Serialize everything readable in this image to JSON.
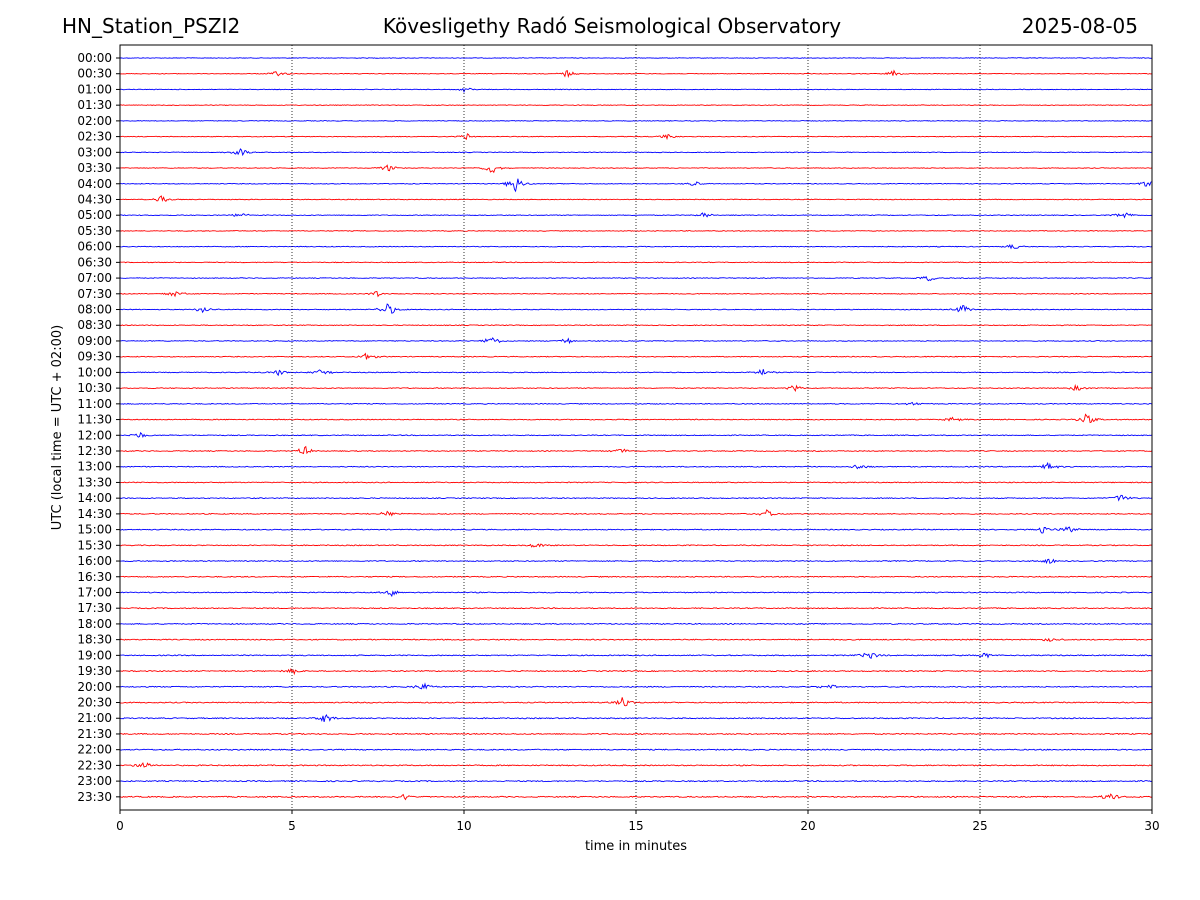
{
  "header": {
    "station": "HN_Station_PSZI2",
    "observatory": "Kövesligethy Radó Seismological Observatory",
    "date": "2025-08-05"
  },
  "chart_data": {
    "type": "line",
    "title": "Kövesligethy Radó Seismological Observatory",
    "xlabel": "time in minutes",
    "ylabel": "UTC (local time = UTC + 02:00)",
    "xlim": [
      0,
      30
    ],
    "xticks": [
      0,
      5,
      10,
      15,
      20,
      25,
      30
    ],
    "grid_x": true,
    "rows": [
      "00:00",
      "00:30",
      "01:00",
      "01:30",
      "02:00",
      "02:30",
      "03:00",
      "03:30",
      "04:00",
      "04:30",
      "05:00",
      "05:30",
      "06:00",
      "06:30",
      "07:00",
      "07:30",
      "08:00",
      "08:30",
      "09:00",
      "09:30",
      "10:00",
      "10:30",
      "11:00",
      "11:30",
      "12:00",
      "12:30",
      "13:00",
      "13:30",
      "14:00",
      "14:30",
      "15:00",
      "15:30",
      "16:00",
      "16:30",
      "17:00",
      "17:30",
      "18:00",
      "18:30",
      "19:00",
      "19:30",
      "20:00",
      "20:30",
      "21:00",
      "21:30",
      "22:00",
      "22:30",
      "23:00",
      "23:30"
    ],
    "colors": [
      "#0000ff",
      "#ff0000"
    ],
    "events": [
      {
        "row": "00:30",
        "t": 4.6,
        "amp": 0.35
      },
      {
        "row": "00:30",
        "t": 13.0,
        "amp": 0.4
      },
      {
        "row": "00:30",
        "t": 22.5,
        "amp": 0.3
      },
      {
        "row": "01:00",
        "t": 10.0,
        "amp": 0.3
      },
      {
        "row": "02:30",
        "t": 10.1,
        "amp": 0.35
      },
      {
        "row": "02:30",
        "t": 15.9,
        "amp": 0.3
      },
      {
        "row": "03:00",
        "t": 3.5,
        "amp": 0.45
      },
      {
        "row": "03:30",
        "t": 7.8,
        "amp": 0.4
      },
      {
        "row": "03:30",
        "t": 10.8,
        "amp": 0.6
      },
      {
        "row": "04:00",
        "t": 11.5,
        "amp": 0.9
      },
      {
        "row": "04:00",
        "t": 16.7,
        "amp": 0.3
      },
      {
        "row": "04:00",
        "t": 29.9,
        "amp": 0.4
      },
      {
        "row": "04:30",
        "t": 1.2,
        "amp": 0.35
      },
      {
        "row": "05:00",
        "t": 3.5,
        "amp": 0.3
      },
      {
        "row": "05:00",
        "t": 17.0,
        "amp": 0.3
      },
      {
        "row": "05:00",
        "t": 29.2,
        "amp": 0.45
      },
      {
        "row": "06:00",
        "t": 26.0,
        "amp": 0.3
      },
      {
        "row": "07:00",
        "t": 23.5,
        "amp": 0.3
      },
      {
        "row": "07:30",
        "t": 1.6,
        "amp": 0.35
      },
      {
        "row": "07:30",
        "t": 7.5,
        "amp": 0.35
      },
      {
        "row": "08:00",
        "t": 2.4,
        "amp": 0.4
      },
      {
        "row": "08:00",
        "t": 7.8,
        "amp": 0.7
      },
      {
        "row": "08:00",
        "t": 24.5,
        "amp": 0.5
      },
      {
        "row": "09:00",
        "t": 10.8,
        "amp": 0.5
      },
      {
        "row": "09:00",
        "t": 13.0,
        "amp": 0.3
      },
      {
        "row": "09:30",
        "t": 7.2,
        "amp": 0.45
      },
      {
        "row": "10:00",
        "t": 4.6,
        "amp": 0.35
      },
      {
        "row": "10:00",
        "t": 5.9,
        "amp": 0.45
      },
      {
        "row": "10:00",
        "t": 18.7,
        "amp": 0.35
      },
      {
        "row": "10:30",
        "t": 19.6,
        "amp": 0.35
      },
      {
        "row": "10:30",
        "t": 27.8,
        "amp": 0.3
      },
      {
        "row": "11:00",
        "t": 23.1,
        "amp": 0.3
      },
      {
        "row": "11:30",
        "t": 24.2,
        "amp": 0.3
      },
      {
        "row": "11:30",
        "t": 28.1,
        "amp": 0.6
      },
      {
        "row": "12:00",
        "t": 0.6,
        "amp": 0.35
      },
      {
        "row": "12:30",
        "t": 5.4,
        "amp": 0.5
      },
      {
        "row": "12:30",
        "t": 14.6,
        "amp": 0.3
      },
      {
        "row": "13:00",
        "t": 21.5,
        "amp": 0.35
      },
      {
        "row": "13:00",
        "t": 27.0,
        "amp": 0.45
      },
      {
        "row": "14:00",
        "t": 29.1,
        "amp": 0.4
      },
      {
        "row": "14:30",
        "t": 7.8,
        "amp": 0.35
      },
      {
        "row": "14:30",
        "t": 18.8,
        "amp": 0.45
      },
      {
        "row": "15:00",
        "t": 26.8,
        "amp": 0.4
      },
      {
        "row": "15:00",
        "t": 27.6,
        "amp": 0.45
      },
      {
        "row": "15:30",
        "t": 12.1,
        "amp": 0.3
      },
      {
        "row": "16:00",
        "t": 27.0,
        "amp": 0.35
      },
      {
        "row": "17:00",
        "t": 7.9,
        "amp": 0.35
      },
      {
        "row": "18:30",
        "t": 27.0,
        "amp": 0.3
      },
      {
        "row": "19:00",
        "t": 21.8,
        "amp": 0.5
      },
      {
        "row": "19:00",
        "t": 25.1,
        "amp": 0.4
      },
      {
        "row": "19:30",
        "t": 5.0,
        "amp": 0.35
      },
      {
        "row": "20:00",
        "t": 8.8,
        "amp": 0.4
      },
      {
        "row": "20:00",
        "t": 20.6,
        "amp": 0.3
      },
      {
        "row": "20:30",
        "t": 14.6,
        "amp": 0.55
      },
      {
        "row": "21:00",
        "t": 6.0,
        "amp": 0.5
      },
      {
        "row": "22:30",
        "t": 0.7,
        "amp": 0.45
      },
      {
        "row": "23:30",
        "t": 8.3,
        "amp": 0.35
      },
      {
        "row": "23:30",
        "t": 28.8,
        "amp": 0.45
      }
    ]
  }
}
